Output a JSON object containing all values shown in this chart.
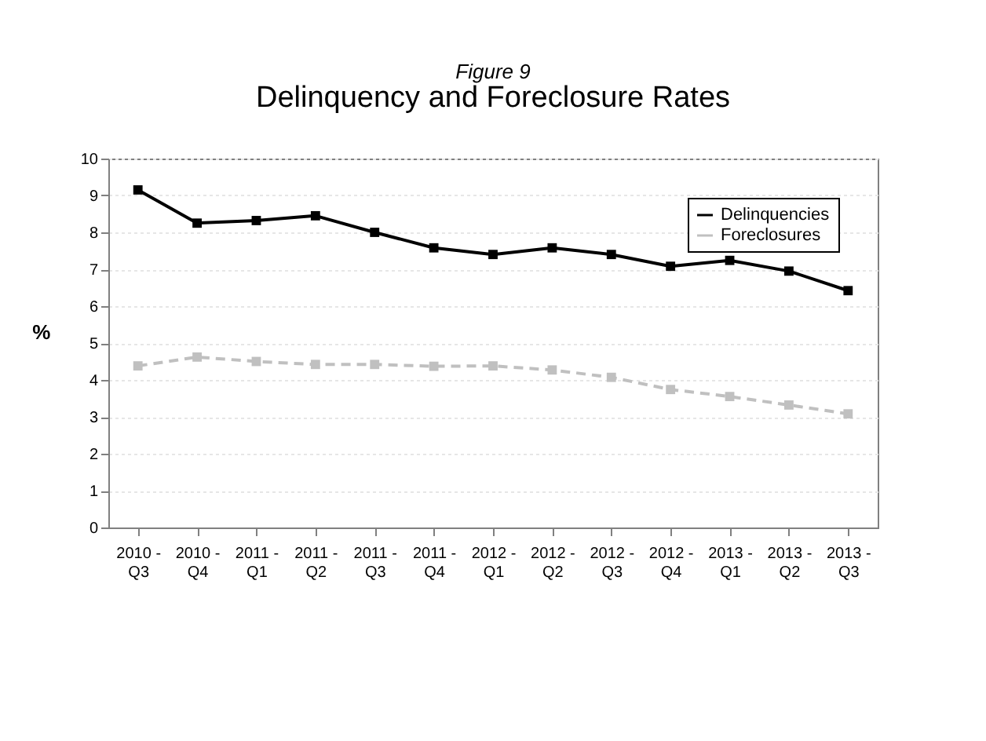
{
  "chart_data": {
    "type": "line",
    "title": "Delinquency and Foreclosure Rates",
    "subtitle": "Figure 9",
    "ylabel": "%",
    "categories": [
      "2010 - Q3",
      "2010 - Q4",
      "2011 - Q1",
      "2011 - Q2",
      "2011 - Q3",
      "2011 - Q4",
      "2012 - Q1",
      "2012 - Q2",
      "2012 - Q3",
      "2012 - Q4",
      "2013 - Q1",
      "2013 - Q2",
      "2013 - Q3"
    ],
    "series": [
      {
        "name": "Delinquencies",
        "color": "#000000",
        "line_style": "solid",
        "values": [
          9.15,
          8.25,
          8.32,
          8.45,
          8.0,
          7.58,
          7.4,
          7.58,
          7.4,
          7.08,
          7.24,
          6.95,
          6.42
        ]
      },
      {
        "name": "Foreclosures",
        "color": "#c0c0c0",
        "line_style": "dashed",
        "values": [
          4.38,
          4.62,
          4.5,
          4.42,
          4.42,
          4.37,
          4.38,
          4.27,
          4.07,
          3.74,
          3.55,
          3.32,
          3.08
        ]
      }
    ],
    "marker": "square",
    "ylim": [
      0,
      10
    ],
    "yticks": [
      0,
      1,
      2,
      3,
      4,
      5,
      6,
      7,
      8,
      9,
      10
    ],
    "grid": "y",
    "legend": "top right"
  }
}
